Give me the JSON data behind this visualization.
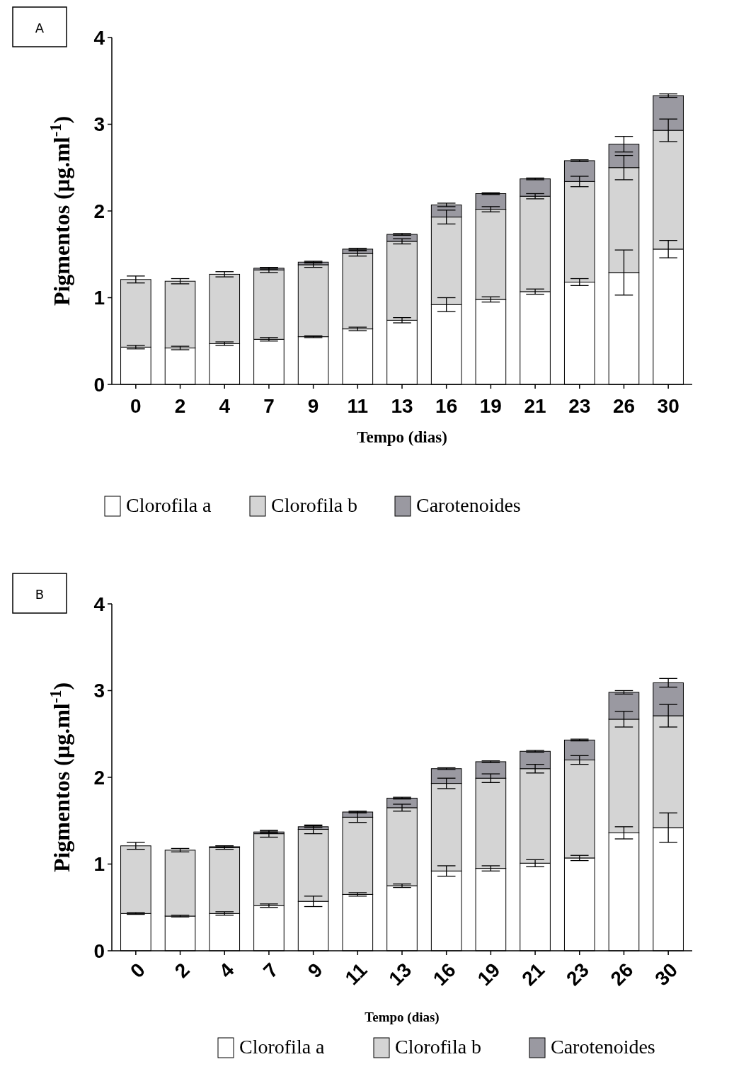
{
  "chart_data": [
    {
      "type": "bar",
      "title": "A",
      "stacked": true,
      "xlabel": "Tempo (dias)",
      "ylabel": "Pigmentos (µg.ml$^{-1}$)",
      "categories": [
        "0",
        "2",
        "4",
        "7",
        "9",
        "11",
        "13",
        "16",
        "19",
        "21",
        "23",
        "26",
        "30"
      ],
      "ylim": [
        0,
        4
      ],
      "yticks": [
        0,
        1,
        2,
        3,
        4
      ],
      "legend": "bottom",
      "grid": false,
      "series": [
        {
          "name": "Clorofila a",
          "color": "#ffffff",
          "values": [
            0.43,
            0.42,
            0.47,
            0.52,
            0.55,
            0.64,
            0.74,
            0.92,
            0.98,
            1.07,
            1.18,
            1.29,
            1.56
          ],
          "errors": [
            0.02,
            0.02,
            0.02,
            0.02,
            0.01,
            0.02,
            0.03,
            0.08,
            0.03,
            0.03,
            0.04,
            0.26,
            0.1
          ]
        },
        {
          "name": "Clorofila b",
          "color": "#d4d4d4",
          "values": [
            0.78,
            0.77,
            0.8,
            0.8,
            0.83,
            0.87,
            0.91,
            1.01,
            1.04,
            1.1,
            1.16,
            1.21,
            1.37
          ],
          "errors": [
            0.04,
            0.03,
            0.03,
            0.03,
            0.03,
            0.03,
            0.03,
            0.08,
            0.03,
            0.03,
            0.06,
            0.14,
            0.13
          ]
        },
        {
          "name": "Carotenoides",
          "color": "#9a99a1",
          "values": [
            null,
            null,
            null,
            0.02,
            0.03,
            0.05,
            0.08,
            0.14,
            0.18,
            0.2,
            0.24,
            0.27,
            0.4
          ],
          "errors": [
            null,
            null,
            null,
            0.01,
            0.01,
            0.01,
            0.01,
            0.02,
            0.01,
            0.01,
            0.01,
            0.09,
            0.02
          ]
        }
      ]
    },
    {
      "type": "bar",
      "title": "B",
      "stacked": true,
      "xlabel": "Tempo (dias)",
      "ylabel": "Pigmentos (µg.ml$^{-1}$)",
      "categories": [
        "0",
        "2",
        "4",
        "7",
        "9",
        "11",
        "13",
        "16",
        "19",
        "21",
        "23",
        "26",
        "30"
      ],
      "ylim": [
        0,
        4
      ],
      "yticks": [
        0,
        1,
        2,
        3,
        4
      ],
      "legend": "bottom",
      "grid": false,
      "series": [
        {
          "name": "Clorofila a",
          "color": "#ffffff",
          "values": [
            0.43,
            0.4,
            0.43,
            0.52,
            0.57,
            0.65,
            0.75,
            0.92,
            0.95,
            1.01,
            1.07,
            1.36,
            1.42
          ],
          "errors": [
            0.01,
            0.01,
            0.02,
            0.02,
            0.06,
            0.02,
            0.02,
            0.06,
            0.03,
            0.04,
            0.03,
            0.07,
            0.17
          ]
        },
        {
          "name": "Clorofila b",
          "color": "#d4d4d4",
          "values": [
            0.78,
            0.76,
            0.76,
            0.83,
            0.83,
            0.89,
            0.9,
            1.01,
            1.04,
            1.09,
            1.13,
            1.31,
            1.29
          ],
          "errors": [
            0.04,
            0.02,
            0.02,
            0.04,
            0.05,
            0.06,
            0.04,
            0.06,
            0.05,
            0.05,
            0.05,
            0.09,
            0.13
          ]
        },
        {
          "name": "Carotenoides",
          "color": "#9a99a1",
          "values": [
            null,
            null,
            0.01,
            0.02,
            0.03,
            0.06,
            0.11,
            0.17,
            0.19,
            0.2,
            0.23,
            0.31,
            0.38
          ],
          "errors": [
            null,
            null,
            0.01,
            0.01,
            0.01,
            0.01,
            0.01,
            0.01,
            0.01,
            0.01,
            0.01,
            0.02,
            0.05
          ]
        }
      ]
    }
  ]
}
